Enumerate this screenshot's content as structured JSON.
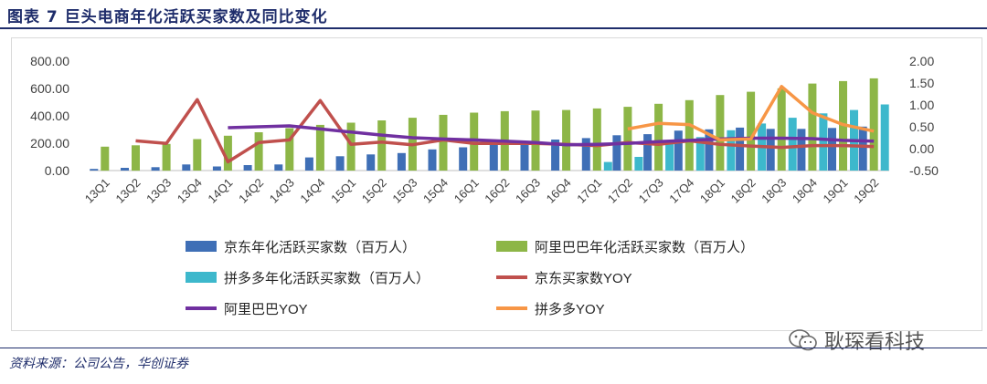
{
  "figure": {
    "title": "图表 7   巨头电商年化活跃买家数及同比变化",
    "source": "资料来源：公司公告，华创证券",
    "watermark": "耿琛看科技",
    "watermark_icon": "wechat-icon"
  },
  "chart_data": {
    "type": "bar",
    "categories": [
      "13Q1",
      "13Q2",
      "13Q3",
      "13Q4",
      "14Q1",
      "14Q2",
      "14Q3",
      "14Q4",
      "15Q1",
      "15Q2",
      "15Q3",
      "15Q4",
      "16Q1",
      "16Q2",
      "16Q3",
      "16Q4",
      "17Q1",
      "17Q2",
      "17Q3",
      "17Q4",
      "18Q1",
      "18Q2",
      "18Q3",
      "18Q4",
      "19Q1",
      "19Q2"
    ],
    "y_left": {
      "min": 0,
      "max": 800,
      "ticks": [
        "0.00",
        "200.00",
        "400.00",
        "600.00",
        "800.00"
      ]
    },
    "y_right": {
      "min": -0.5,
      "max": 2.0,
      "ticks": [
        "-0.50",
        "0.00",
        "0.50",
        "1.00",
        "1.50",
        "2.00"
      ]
    },
    "grid": false,
    "legend_position": "bottom",
    "bar_series": [
      {
        "name": "京东年化活跃买家数（百万人）",
        "color": "#3f6fb6",
        "values": [
          12,
          20,
          25,
          45,
          30,
          40,
          45,
          96,
          105,
          118,
          128,
          155,
          170,
          188,
          206,
          227,
          237,
          258,
          266,
          292,
          301,
          314,
          305,
          305,
          311,
          321
        ]
      },
      {
        "name": "阿里巴巴年化活跃买家数（百万人）",
        "color": "#8db647",
        "values": [
          175,
          185,
          195,
          230,
          255,
          280,
          310,
          334,
          350,
          367,
          386,
          407,
          423,
          434,
          439,
          443,
          454,
          466,
          488,
          515,
          552,
          576,
          601,
          636,
          654,
          674
        ]
      },
      {
        "name": "拼多多年化活跃买家数（百万人）",
        "color": "#3db8cc",
        "values": [
          null,
          null,
          null,
          null,
          null,
          null,
          null,
          null,
          null,
          null,
          null,
          null,
          null,
          null,
          null,
          null,
          63,
          100,
          200,
          245,
          295,
          344,
          386,
          418,
          443,
          483
        ]
      }
    ],
    "line_series": [
      {
        "name": "京东买家数YOY",
        "color": "#c0504d",
        "values": [
          null,
          0.18,
          0.12,
          1.12,
          -0.3,
          0.14,
          0.2,
          1.1,
          0.1,
          0.15,
          0.09,
          0.2,
          0.12,
          0.12,
          0.12,
          0.1,
          0.07,
          0.14,
          0.1,
          0.18,
          0.1,
          0.06,
          0.03,
          0.07,
          0.07,
          0.05
        ]
      },
      {
        "name": "阿里巴巴YOY",
        "color": "#7030a0",
        "values": [
          null,
          null,
          null,
          null,
          0.48,
          0.5,
          0.52,
          0.45,
          0.38,
          0.31,
          0.25,
          0.22,
          0.2,
          0.17,
          0.14,
          0.09,
          0.1,
          0.12,
          0.16,
          0.19,
          0.22,
          0.24,
          0.24,
          0.23,
          0.19,
          0.17
        ]
      },
      {
        "name": "拼多多YOY",
        "color": "#f79646",
        "values": [
          null,
          null,
          null,
          null,
          null,
          null,
          null,
          null,
          null,
          null,
          null,
          null,
          null,
          null,
          null,
          null,
          null,
          0.45,
          0.58,
          0.55,
          0.2,
          0.22,
          1.42,
          0.82,
          0.55,
          0.4
        ]
      }
    ]
  }
}
